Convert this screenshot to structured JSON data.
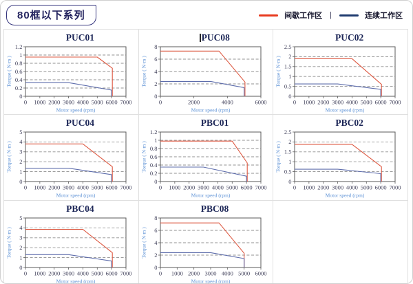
{
  "header": {
    "title": "80框以下系列"
  },
  "legend": {
    "intermittent_label": "间歇工作区",
    "separator": "|",
    "continuous_label": "连续工作区",
    "intermittent_color": "#e8391d",
    "continuous_color": "#1d3a6e"
  },
  "chart_data": [
    {
      "type": "line",
      "title": "PUC01",
      "title_caret": false,
      "xlabel": "Motor speed (rpm)",
      "ylabel": "Torque ( N·m )",
      "xlim": [
        0,
        7000
      ],
      "xticks": [
        0,
        1000,
        2000,
        3000,
        4000,
        5000,
        6000,
        7000
      ],
      "ylim": [
        0,
        1.2
      ],
      "yticks": [
        0,
        0.2,
        0.4,
        0.6,
        0.8,
        1,
        1.2
      ],
      "grid": "horizontal-dashed",
      "legend_position": "top-right-of-page",
      "series": [
        {
          "name": "间歇工作区",
          "color": "#dd5942",
          "points": [
            [
              0,
              0.95
            ],
            [
              5000,
              0.95
            ],
            [
              6050,
              0.68
            ],
            [
              6050,
              0
            ]
          ]
        },
        {
          "name": "连续工作区",
          "color": "#5d6cab",
          "points": [
            [
              0,
              0.33
            ],
            [
              3000,
              0.33
            ],
            [
              6000,
              0.15
            ],
            [
              6000,
              0
            ]
          ]
        }
      ]
    },
    {
      "type": "line",
      "title": "PUC08",
      "title_caret": true,
      "xlabel": "Motor speed (rpm)",
      "ylabel": "Torque ( N·m )",
      "xlim": [
        0,
        6000
      ],
      "xticks": [
        0,
        2000,
        4000,
        6000
      ],
      "ylim": [
        0,
        8
      ],
      "yticks": [
        0,
        2,
        4,
        6,
        8
      ],
      "grid": "horizontal-dashed",
      "series": [
        {
          "name": "间歇工作区",
          "color": "#dd5942",
          "points": [
            [
              0,
              7.3
            ],
            [
              3500,
              7.3
            ],
            [
              5050,
              2.3
            ],
            [
              5050,
              0
            ]
          ]
        },
        {
          "name": "连续工作区",
          "color": "#5d6cab",
          "points": [
            [
              0,
              2.4
            ],
            [
              3000,
              2.4
            ],
            [
              5000,
              1.4
            ],
            [
              5000,
              0
            ]
          ]
        }
      ]
    },
    {
      "type": "line",
      "title": "PUC02",
      "title_caret": false,
      "xlabel": "Motor speed (rpm)",
      "ylabel": "Torque ( N·m )",
      "xlim": [
        0,
        7000
      ],
      "xticks": [
        0,
        1000,
        2000,
        3000,
        4000,
        5000,
        6000,
        7000
      ],
      "ylim": [
        0,
        2.5
      ],
      "yticks": [
        0,
        0.5,
        1,
        1.5,
        2,
        2.5
      ],
      "grid": "horizontal-dashed",
      "series": [
        {
          "name": "间歇工作区",
          "color": "#dd5942",
          "points": [
            [
              0,
              1.9
            ],
            [
              4000,
              1.9
            ],
            [
              6050,
              0.6
            ],
            [
              6050,
              0
            ]
          ]
        },
        {
          "name": "连续工作区",
          "color": "#5d6cab",
          "points": [
            [
              0,
              0.62
            ],
            [
              3000,
              0.62
            ],
            [
              6000,
              0.35
            ],
            [
              6000,
              0
            ]
          ]
        }
      ]
    },
    {
      "type": "line",
      "title": "PUC04",
      "title_caret": false,
      "xlabel": "Motor speed (rpm)",
      "ylabel": "Torque ( N·m )",
      "xlim": [
        0,
        7000
      ],
      "xticks": [
        0,
        1000,
        2000,
        3000,
        4000,
        5000,
        6000,
        7000
      ],
      "ylim": [
        0,
        5
      ],
      "yticks": [
        0,
        1,
        2,
        3,
        4,
        5
      ],
      "grid": "horizontal-dashed",
      "series": [
        {
          "name": "间歇工作区",
          "color": "#dd5942",
          "points": [
            [
              0,
              3.8
            ],
            [
              4000,
              3.8
            ],
            [
              6050,
              1.5
            ],
            [
              6050,
              0
            ]
          ]
        },
        {
          "name": "连续工作区",
          "color": "#5d6cab",
          "points": [
            [
              0,
              1.35
            ],
            [
              3000,
              1.35
            ],
            [
              6000,
              0.7
            ],
            [
              6000,
              0
            ]
          ]
        }
      ]
    },
    {
      "type": "line",
      "title": "PBC01",
      "title_caret": false,
      "xlabel": "Motor speed (rpm)",
      "ylabel": "Torque ( N·m )",
      "xlim": [
        0,
        7000
      ],
      "xticks": [
        0,
        1000,
        2000,
        3000,
        4000,
        5000,
        6000,
        7000
      ],
      "ylim": [
        0,
        1.2
      ],
      "yticks": [
        0,
        0.2,
        0.4,
        0.6,
        0.8,
        1,
        1.2
      ],
      "grid": "horizontal-dashed",
      "series": [
        {
          "name": "间歇工作区",
          "color": "#dd5942",
          "points": [
            [
              0,
              0.98
            ],
            [
              5000,
              0.98
            ],
            [
              6050,
              0.45
            ],
            [
              6050,
              0
            ]
          ]
        },
        {
          "name": "连续工作区",
          "color": "#5d6cab",
          "points": [
            [
              0,
              0.35
            ],
            [
              3000,
              0.35
            ],
            [
              6000,
              0.13
            ],
            [
              6000,
              0
            ]
          ]
        }
      ]
    },
    {
      "type": "line",
      "title": "PBC02",
      "title_caret": false,
      "xlabel": "Motor speed (rpm)",
      "ylabel": "Torque ( N·m )",
      "xlim": [
        0,
        7000
      ],
      "xticks": [
        0,
        1000,
        2000,
        3000,
        4000,
        5000,
        6000,
        7000
      ],
      "ylim": [
        0,
        2.5
      ],
      "yticks": [
        0,
        0.5,
        1,
        1.5,
        2,
        2.5
      ],
      "grid": "horizontal-dashed",
      "series": [
        {
          "name": "间歇工作区",
          "color": "#dd5942",
          "points": [
            [
              0,
              1.88
            ],
            [
              4000,
              1.88
            ],
            [
              6050,
              0.75
            ],
            [
              6050,
              0
            ]
          ]
        },
        {
          "name": "连续工作区",
          "color": "#5d6cab",
          "points": [
            [
              0,
              0.62
            ],
            [
              3000,
              0.62
            ],
            [
              6000,
              0.4
            ],
            [
              6000,
              0
            ]
          ]
        }
      ]
    },
    {
      "type": "line",
      "title": "PBC04",
      "title_caret": false,
      "xlabel": "Motor speed (rpm)",
      "ylabel": "Torque ( N·m )",
      "xlim": [
        0,
        7000
      ],
      "xticks": [
        0,
        1000,
        2000,
        3000,
        4000,
        5000,
        6000,
        7000
      ],
      "ylim": [
        0,
        5
      ],
      "yticks": [
        0,
        1,
        2,
        3,
        4,
        5
      ],
      "grid": "horizontal-dashed",
      "series": [
        {
          "name": "间歇工作区",
          "color": "#dd5942",
          "points": [
            [
              0,
              3.85
            ],
            [
              4000,
              3.85
            ],
            [
              6050,
              1.5
            ],
            [
              6050,
              0
            ]
          ]
        },
        {
          "name": "连续工作区",
          "color": "#5d6cab",
          "points": [
            [
              0,
              1.3
            ],
            [
              3000,
              1.3
            ],
            [
              6000,
              0.65
            ],
            [
              6000,
              0
            ]
          ]
        }
      ]
    },
    {
      "type": "line",
      "title": "PBC08",
      "title_caret": false,
      "xlabel": "Motor speed (rpm)",
      "ylabel": "Torque ( N·m )",
      "xlim": [
        0,
        6000
      ],
      "xticks": [
        0,
        1000,
        2000,
        3000,
        4000,
        5000,
        6000
      ],
      "ylim": [
        0,
        8
      ],
      "yticks": [
        0,
        2,
        4,
        6,
        8
      ],
      "grid": "horizontal-dashed",
      "series": [
        {
          "name": "间歇工作区",
          "color": "#dd5942",
          "points": [
            [
              0,
              7.2
            ],
            [
              3500,
              7.2
            ],
            [
              5000,
              2.3
            ],
            [
              5000,
              0
            ]
          ]
        },
        {
          "name": "连续工作区",
          "color": "#5d6cab",
          "points": [
            [
              0,
              2.4
            ],
            [
              3000,
              2.4
            ],
            [
              5000,
              1.45
            ],
            [
              5000,
              0
            ]
          ]
        }
      ]
    }
  ]
}
